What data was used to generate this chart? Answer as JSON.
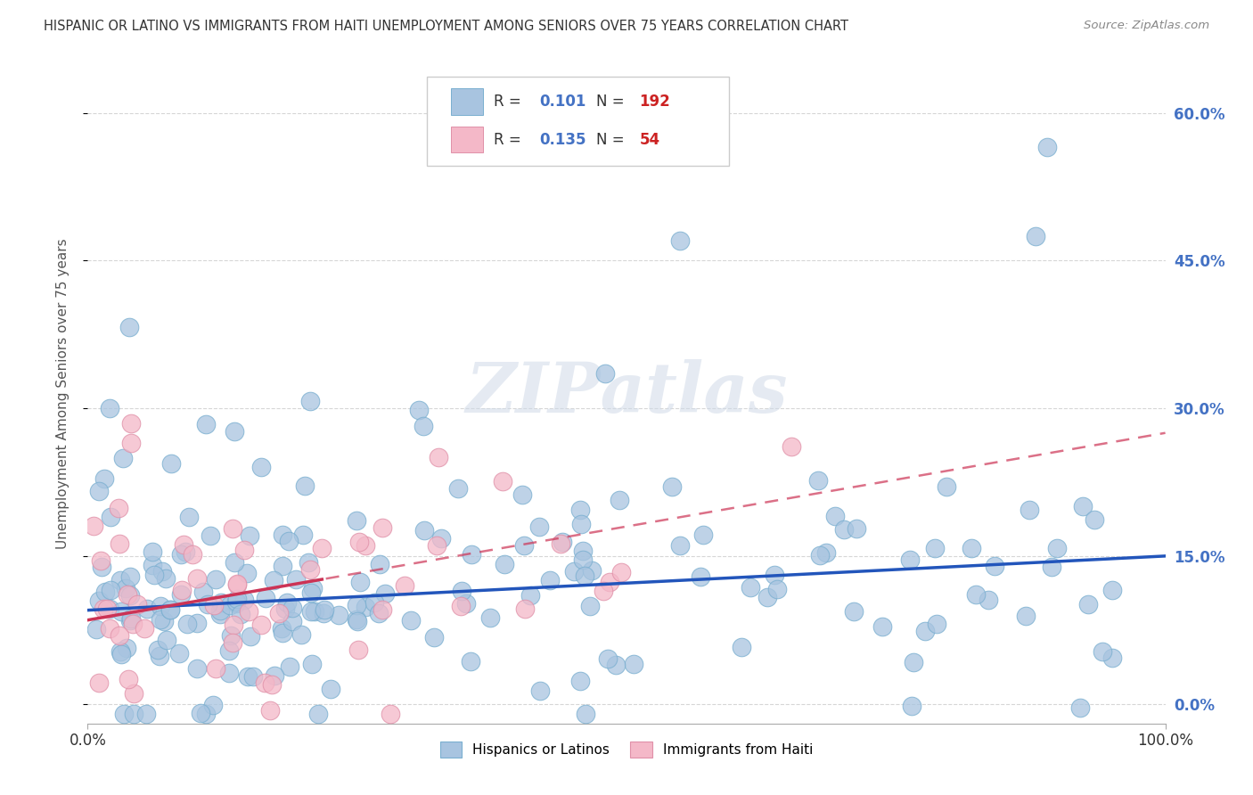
{
  "title": "HISPANIC OR LATINO VS IMMIGRANTS FROM HAITI UNEMPLOYMENT AMONG SENIORS OVER 75 YEARS CORRELATION CHART",
  "source": "Source: ZipAtlas.com",
  "ylabel": "Unemployment Among Seniors over 75 years",
  "xlim": [
    0,
    1.0
  ],
  "ylim": [
    -0.02,
    0.65
  ],
  "yticks": [
    0.0,
    0.15,
    0.3,
    0.45,
    0.6
  ],
  "ytick_labels": [
    "0.0%",
    "15.0%",
    "30.0%",
    "45.0%",
    "60.0%"
  ],
  "xticks": [
    0.0,
    1.0
  ],
  "xtick_labels": [
    "0.0%",
    "100.0%"
  ],
  "series1_color": "#a8c4e0",
  "series1_edge": "#7aafd0",
  "series2_color": "#f4b8c8",
  "series2_edge": "#e090a8",
  "trend1_color": "#2255bb",
  "trend2_color": "#cc3355",
  "R1": 0.101,
  "N1": 192,
  "R2": 0.135,
  "N2": 54,
  "legend_labels": [
    "Hispanics or Latinos",
    "Immigrants from Haiti"
  ],
  "watermark": "ZIPatlas",
  "background_color": "#ffffff",
  "grid_color": "#cccccc",
  "trend1_intercept": 0.095,
  "trend1_slope": 0.055,
  "trend2_intercept": 0.085,
  "trend2_slope": 0.19
}
